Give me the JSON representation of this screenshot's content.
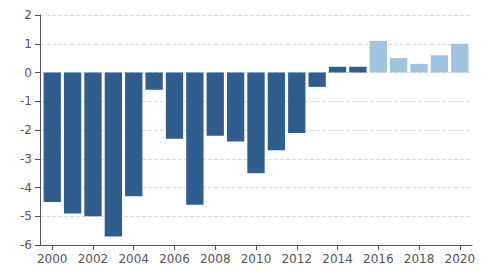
{
  "chart_data": {
    "type": "bar",
    "x": [
      2000,
      2001,
      2002,
      2003,
      2004,
      2005,
      2006,
      2007,
      2008,
      2009,
      2010,
      2011,
      2012,
      2013,
      2014,
      2015,
      2016,
      2017,
      2018,
      2019,
      2020
    ],
    "values": [
      -4.5,
      -4.9,
      -5.0,
      -5.7,
      -4.3,
      -0.6,
      -2.3,
      -4.6,
      -2.2,
      -2.4,
      -3.5,
      -2.7,
      -2.1,
      -0.5,
      0.2,
      0.2,
      1.1,
      0.5,
      0.3,
      0.6,
      1.0
    ],
    "colors": [
      "#2E5D8E",
      "#2E5D8E",
      "#2E5D8E",
      "#2E5D8E",
      "#2E5D8E",
      "#2E5D8E",
      "#2E5D8E",
      "#2E5D8E",
      "#2E5D8E",
      "#2E5D8E",
      "#2E5D8E",
      "#2E5D8E",
      "#2E5D8E",
      "#2E5D8E",
      "#2E5D8E",
      "#2E5D8E",
      "#9EC4E0",
      "#9EC4E0",
      "#9EC4E0",
      "#9EC4E0",
      "#9EC4E0"
    ],
    "xlim": [
      1999.4,
      2020.6
    ],
    "xticks": [
      2000,
      2002,
      2004,
      2006,
      2008,
      2010,
      2012,
      2014,
      2016,
      2018,
      2020
    ],
    "ylim": [
      -6,
      2
    ],
    "yticks": [
      -6,
      -5,
      -4,
      -3,
      -2,
      -1,
      0,
      1,
      2
    ],
    "grid": true
  }
}
